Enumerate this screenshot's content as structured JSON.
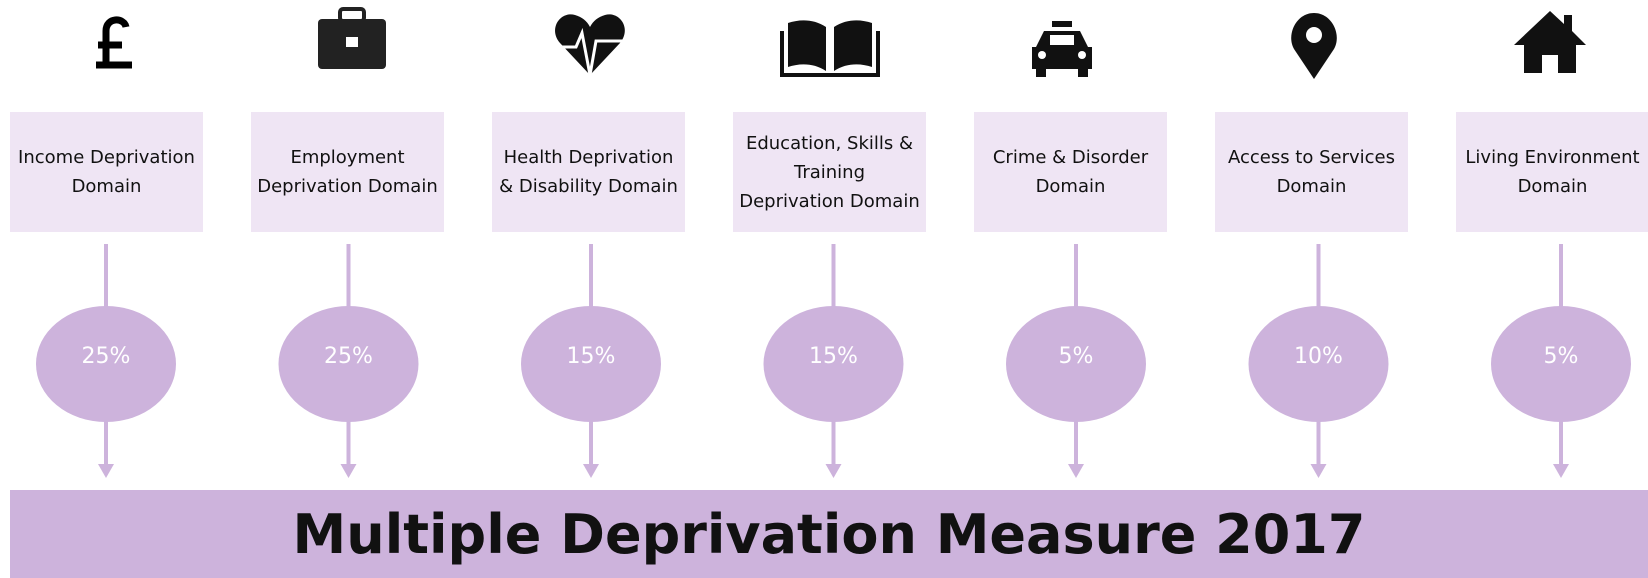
{
  "title": "Multiple Deprivation Measure 2017",
  "domains": [
    {
      "label": "Income Deprivation Domain",
      "weight": "25%"
    },
    {
      "label": "Employment Deprivation Domain",
      "weight": "25%"
    },
    {
      "label": "Health Deprivation & Disability Domain",
      "weight": "15%"
    },
    {
      "label": "Education, Skills & Training Deprivation Domain",
      "weight": "15%"
    },
    {
      "label": "Crime & Disorder Domain",
      "weight": "5%"
    },
    {
      "label": "Access to Services Domain",
      "weight": "10%"
    },
    {
      "label": "Living Environment Domain",
      "weight": "5%"
    }
  ]
}
